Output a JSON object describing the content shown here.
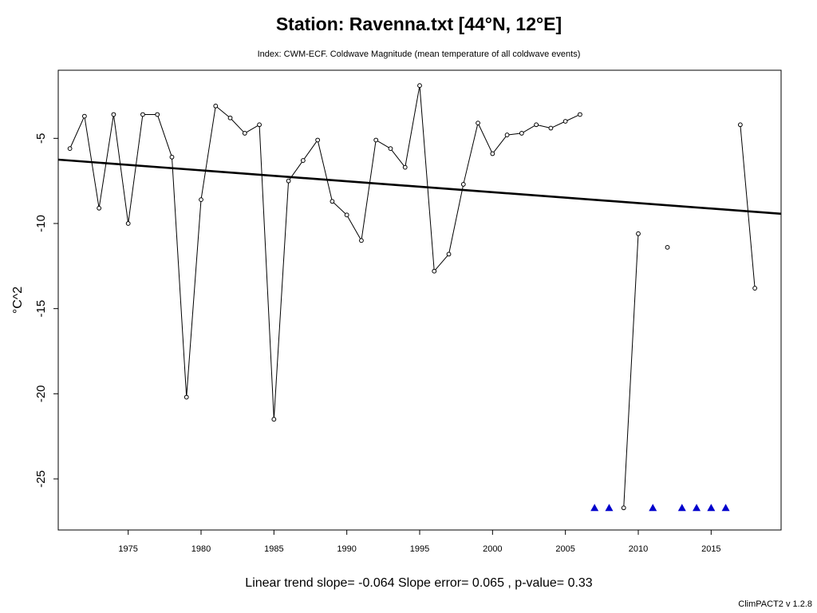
{
  "chart_data": {
    "type": "line",
    "title": "Station: Ravenna.txt [44°N, 12°E]",
    "subtitle": "Index: CWM-ECF. Coldwave Magnitude (mean temperature of all coldwave events)",
    "xlabel": "",
    "ylabel": "°C^2",
    "xlim": [
      1970.2,
      2019.8
    ],
    "ylim": [
      -28.0,
      -1.0
    ],
    "x_ticks": [
      "1975",
      "1980",
      "1985",
      "1990",
      "1995",
      "2000",
      "2005",
      "2010",
      "2015"
    ],
    "y_ticks": [
      "-5",
      "-10",
      "-15",
      "-20",
      "-25"
    ],
    "x_tick_values": [
      1975,
      1980,
      1985,
      1990,
      1995,
      2000,
      2005,
      2010,
      2015
    ],
    "y_tick_values": [
      -5,
      -10,
      -15,
      -20,
      -25
    ],
    "series": [
      {
        "x": [
          1971,
          1972,
          1973,
          1974,
          1975,
          1976,
          1977,
          1978,
          1979,
          1980,
          1981,
          1982,
          1983,
          1984,
          1985,
          1986,
          1987,
          1988,
          1989,
          1990,
          1991,
          1992,
          1993,
          1994,
          1995,
          1996,
          1997,
          1998,
          1999,
          2000,
          2001,
          2002,
          2003,
          2004,
          2005,
          2006,
          2009,
          2010,
          2012,
          2017,
          2018
        ],
        "values": [
          -5.6,
          -3.7,
          -9.1,
          -3.6,
          -10.0,
          -3.6,
          -3.6,
          -6.1,
          -20.2,
          -8.6,
          -3.1,
          -3.8,
          -4.7,
          -4.2,
          -21.5,
          -7.5,
          -6.3,
          -5.1,
          -8.7,
          -9.5,
          -11.0,
          -5.1,
          -5.6,
          -6.7,
          -1.9,
          -12.8,
          -11.8,
          -7.7,
          -4.1,
          -5.9,
          -4.8,
          -4.7,
          -4.2,
          -4.4,
          -4.0,
          -3.6,
          -26.7,
          -10.6,
          -11.4,
          -4.2,
          -13.8
        ],
        "connect_breaks_at": [
          2006,
          2010,
          2012
        ]
      }
    ],
    "trend_line": {
      "x": [
        1970.2,
        2019.8
      ],
      "y": [
        -6.25,
        -9.43
      ]
    },
    "missing_markers": {
      "x": [
        2007,
        2008,
        2011,
        2013,
        2014,
        2015,
        2016
      ],
      "y": -26.7,
      "color": "#0000cc"
    },
    "footer": "Linear trend slope= -0.064    Slope error= 0.065 ,   p-value= 0.33",
    "credit": "ClimPACT2 v 1.2.8",
    "grid": false,
    "legend": "none"
  }
}
